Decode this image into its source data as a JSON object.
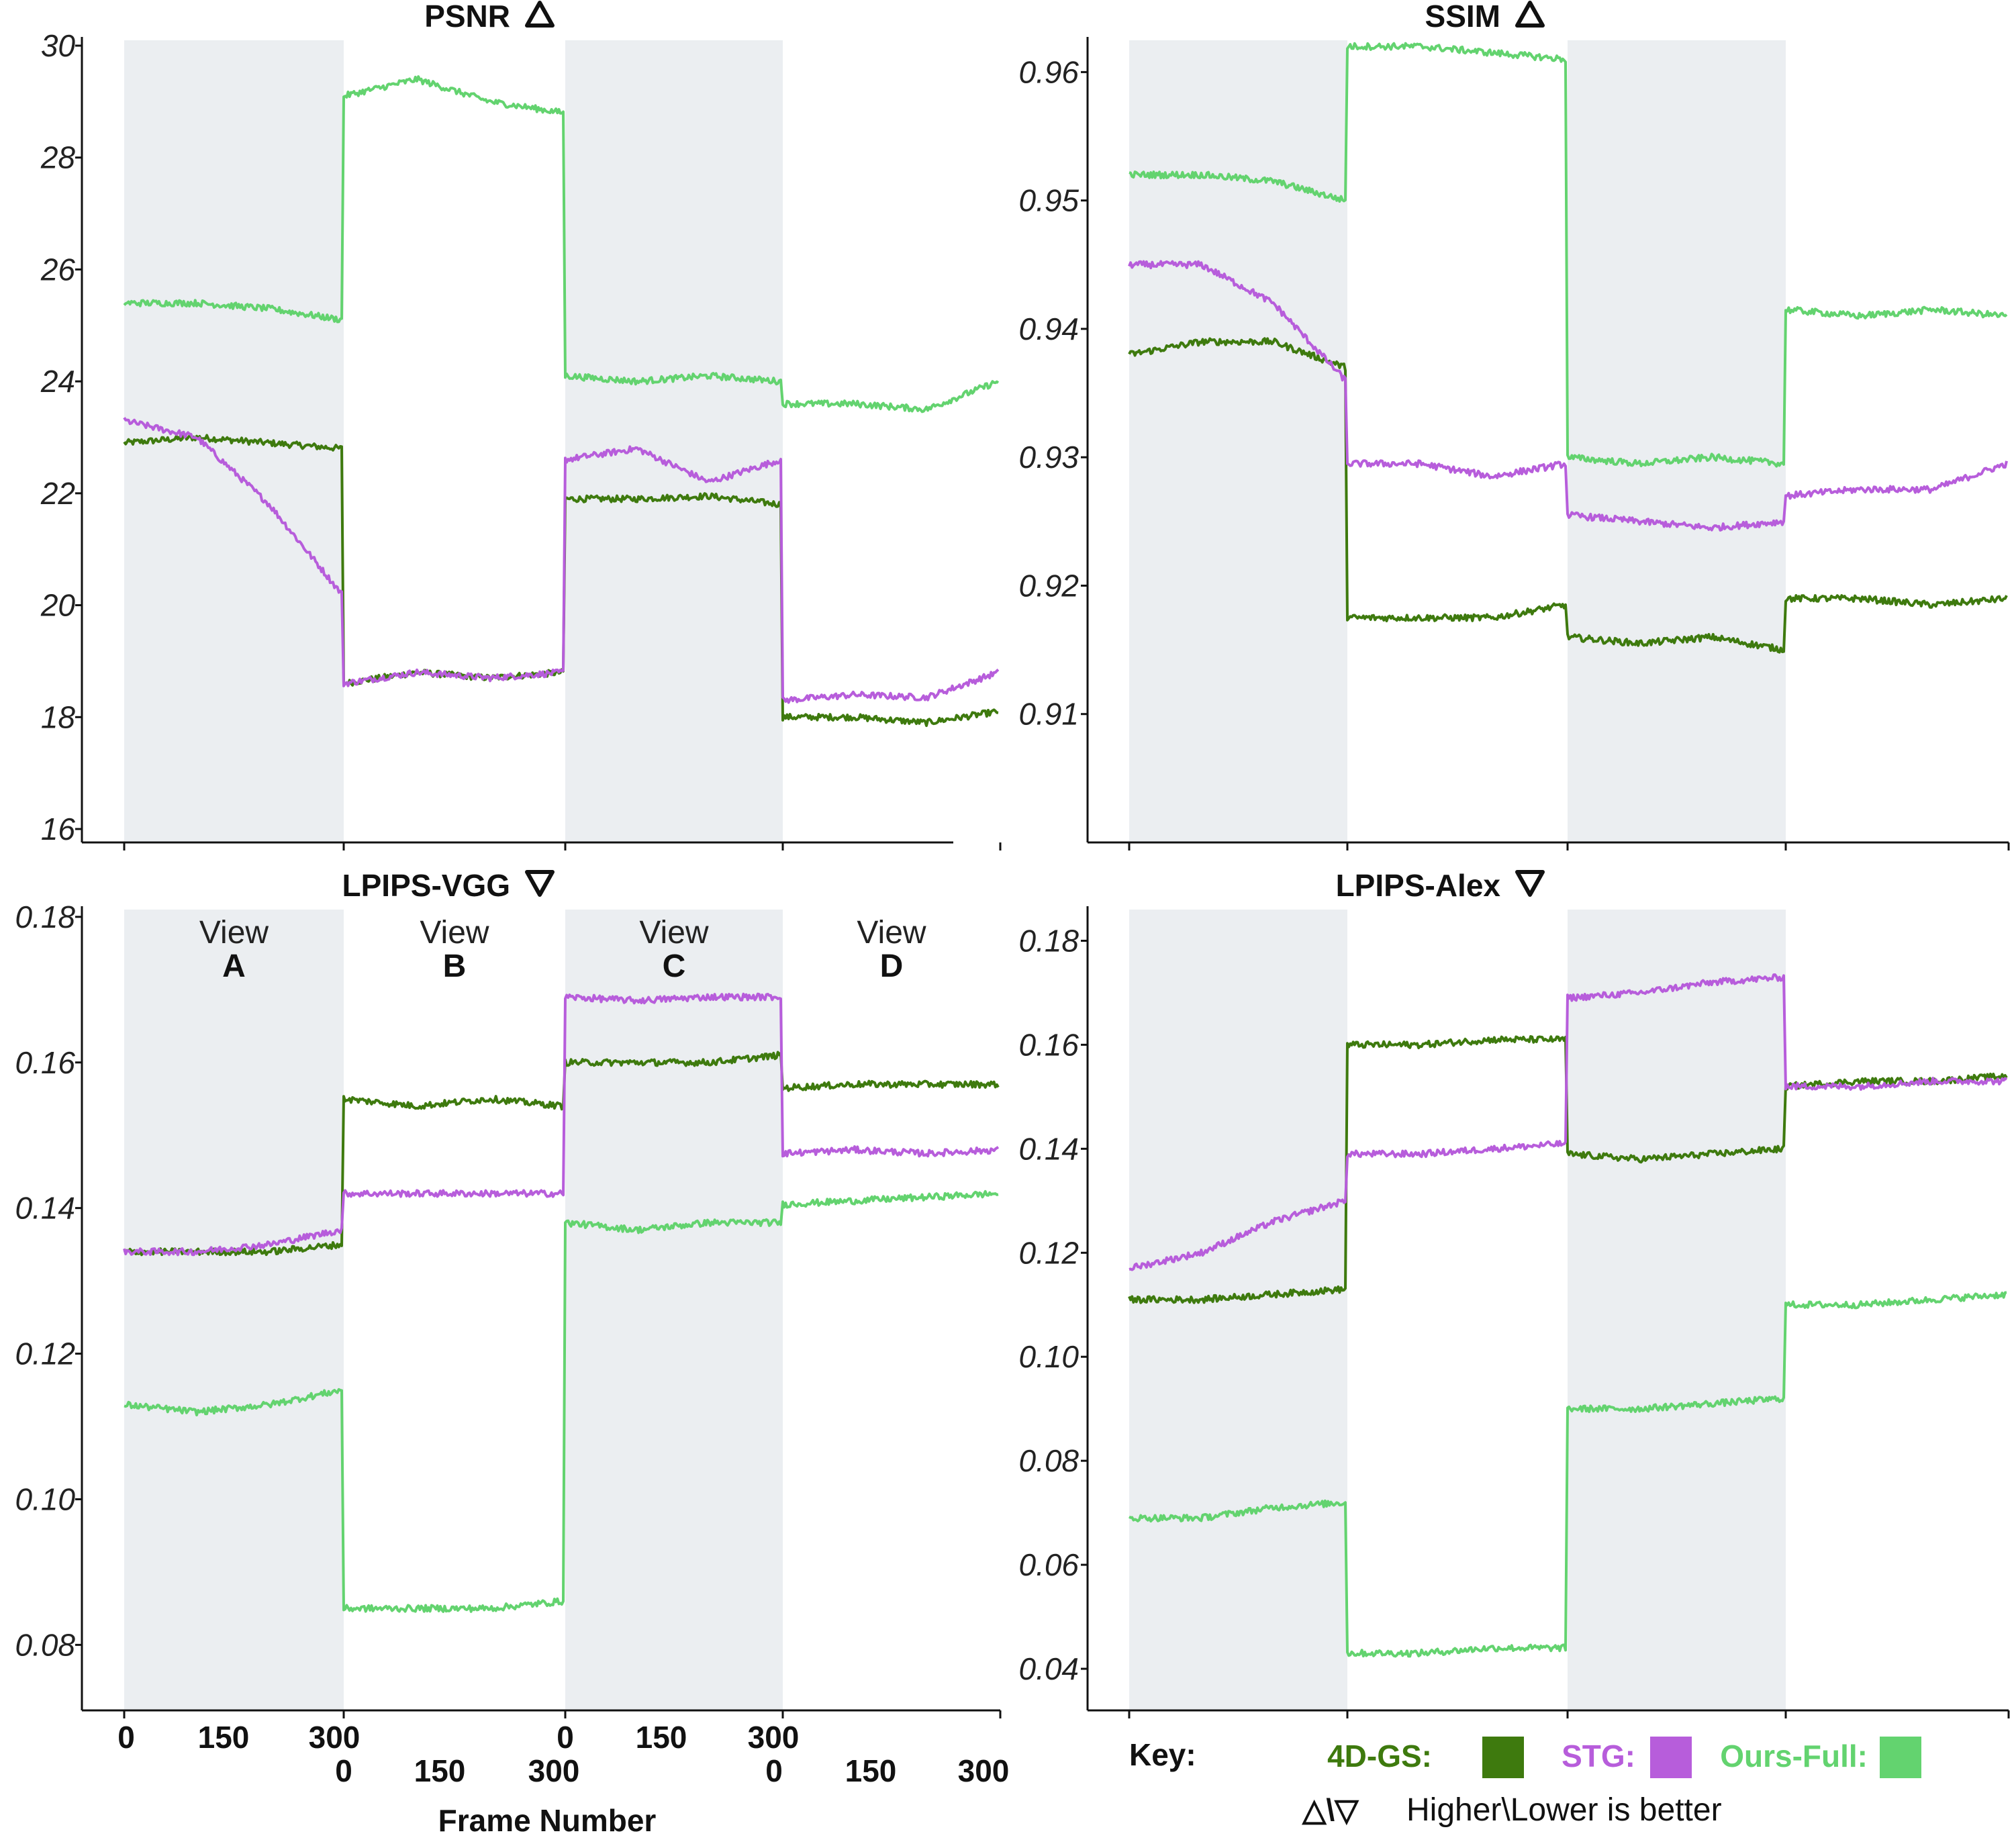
{
  "chart_data": [
    {
      "type": "line",
      "title": "PSNR",
      "direction": "higher",
      "ylim": [
        16,
        30
      ],
      "yticks": [
        "16",
        "18",
        "20",
        "22",
        "24",
        "26",
        "28",
        "30"
      ],
      "x_segments": [
        "View A (frames 0-300)",
        "View B (frames 0-300)",
        "View C (frames 0-300)",
        "View D (frames 0-300)"
      ],
      "series": [
        {
          "name": "4D-GS",
          "segments": [
            [
              22.9,
              23.0,
              22.9,
              22.8
            ],
            [
              18.6,
              18.8,
              18.7,
              18.8
            ],
            [
              21.9,
              21.9,
              21.95,
              21.8
            ],
            [
              18.0,
              18.0,
              17.9,
              18.1
            ]
          ]
        },
        {
          "name": "STG",
          "segments": [
            [
              23.3,
              23.0,
              21.8,
              20.2
            ],
            [
              18.6,
              18.8,
              18.7,
              18.8
            ],
            [
              22.6,
              22.8,
              22.2,
              22.6
            ],
            [
              18.3,
              18.4,
              18.35,
              18.8
            ]
          ]
        },
        {
          "name": "Ours-Full",
          "segments": [
            [
              25.4,
              25.4,
              25.3,
              25.1
            ],
            [
              29.1,
              29.4,
              29.0,
              28.8
            ],
            [
              24.1,
              24.0,
              24.1,
              24.0
            ],
            [
              23.6,
              23.6,
              23.5,
              24.0
            ]
          ]
        }
      ]
    },
    {
      "type": "line",
      "title": "SSIM",
      "direction": "higher",
      "ylim": [
        0.9,
        0.963
      ],
      "yticks": [
        "0.91",
        "0.92",
        "0.93",
        "0.94",
        "0.95",
        "0.96"
      ],
      "x_segments": [
        "View A",
        "View B",
        "View C",
        "View D"
      ],
      "series": [
        {
          "name": "4D-GS",
          "segments": [
            [
              0.938,
              0.939,
              0.939,
              0.937
            ],
            [
              0.9175,
              0.9175,
              0.9175,
              0.9185
            ],
            [
              0.916,
              0.9155,
              0.916,
              0.915
            ],
            [
              0.919,
              0.919,
              0.9185,
              0.919
            ]
          ]
        },
        {
          "name": "STG",
          "segments": [
            [
              0.945,
              0.945,
              0.942,
              0.936
            ],
            [
              0.9295,
              0.9295,
              0.9285,
              0.9295
            ],
            [
              0.9255,
              0.925,
              0.9245,
              0.925
            ],
            [
              0.927,
              0.9275,
              0.9275,
              0.9295
            ]
          ]
        },
        {
          "name": "Ours-Full",
          "segments": [
            [
              0.952,
              0.952,
              0.9515,
              0.95
            ],
            [
              0.962,
              0.962,
              0.9615,
              0.961
            ],
            [
              0.93,
              0.9295,
              0.93,
              0.9295
            ],
            [
              0.9415,
              0.941,
              0.9415,
              0.941
            ]
          ]
        }
      ]
    },
    {
      "type": "line",
      "title": "LPIPS-VGG",
      "direction": "lower",
      "ylim": [
        0.071,
        0.181
      ],
      "yticks": [
        "0.08",
        "0.10",
        "0.12",
        "0.14",
        "0.16",
        "0.18"
      ],
      "x_segments": [
        "View A",
        "View B",
        "View C",
        "View D"
      ],
      "series": [
        {
          "name": "4D-GS",
          "segments": [
            [
              0.134,
              0.134,
              0.134,
              0.135
            ],
            [
              0.155,
              0.154,
              0.155,
              0.154
            ],
            [
              0.16,
              0.16,
              0.16,
              0.161
            ],
            [
              0.1565,
              0.157,
              0.157,
              0.157
            ]
          ]
        },
        {
          "name": "STG",
          "segments": [
            [
              0.134,
              0.134,
              0.135,
              0.137
            ],
            [
              0.142,
              0.142,
              0.142,
              0.142
            ],
            [
              0.169,
              0.1685,
              0.169,
              0.169
            ],
            [
              0.1475,
              0.148,
              0.1475,
              0.148
            ]
          ]
        },
        {
          "name": "Ours-Full",
          "segments": [
            [
              0.113,
              0.112,
              0.113,
              0.115
            ],
            [
              0.085,
              0.085,
              0.085,
              0.086
            ],
            [
              0.138,
              0.137,
              0.138,
              0.138
            ],
            [
              0.1405,
              0.141,
              0.1415,
              0.142
            ]
          ]
        }
      ],
      "annotations": [
        {
          "word": "View",
          "letter": "A"
        },
        {
          "word": "View",
          "letter": "B"
        },
        {
          "word": "View",
          "letter": "C"
        },
        {
          "word": "View",
          "letter": "D"
        }
      ]
    },
    {
      "type": "line",
      "title": "LPIPS-Alex",
      "direction": "lower",
      "ylim": [
        0.032,
        0.186
      ],
      "yticks": [
        "0.04",
        "0.06",
        "0.08",
        "0.10",
        "0.12",
        "0.14",
        "0.16",
        "0.18"
      ],
      "x_segments": [
        "View A",
        "View B",
        "View C",
        "View D"
      ],
      "series": [
        {
          "name": "4D-GS",
          "segments": [
            [
              0.111,
              0.111,
              0.112,
              0.113
            ],
            [
              0.16,
              0.16,
              0.161,
              0.161
            ],
            [
              0.139,
              0.138,
              0.139,
              0.14
            ],
            [
              0.152,
              0.153,
              0.153,
              0.154
            ]
          ]
        },
        {
          "name": "STG",
          "segments": [
            [
              0.117,
              0.12,
              0.126,
              0.13
            ],
            [
              0.139,
              0.139,
              0.14,
              0.141
            ],
            [
              0.169,
              0.17,
              0.172,
              0.173
            ],
            [
              0.152,
              0.152,
              0.153,
              0.153
            ]
          ]
        },
        {
          "name": "Ours-Full",
          "segments": [
            [
              0.069,
              0.069,
              0.071,
              0.072
            ],
            [
              0.043,
              0.043,
              0.044,
              0.044
            ],
            [
              0.09,
              0.09,
              0.091,
              0.092
            ],
            [
              0.11,
              0.11,
              0.111,
              0.112
            ]
          ]
        }
      ]
    }
  ],
  "x_axis": {
    "label": "Frame Number",
    "row1": [
      "0",
      "150",
      "300",
      "0",
      "150",
      "300"
    ],
    "row2": [
      "0",
      "150",
      "300",
      "0",
      "150",
      "300"
    ]
  },
  "legend": {
    "key_label": "Key:",
    "entries": [
      {
        "label": "4D-GS:",
        "color": "#3e7a0e"
      },
      {
        "label": "STG:",
        "color": "#b75ddb"
      },
      {
        "label": "Ours-Full:",
        "color": "#63d36f"
      }
    ],
    "note_symbols": "△\\▽",
    "note_text": "Higher\\Lower is better"
  },
  "colors": {
    "4D-GS": "#3e7a0e",
    "STG": "#b75ddb",
    "Ours-Full": "#63d36f",
    "shade": "#ebeef1",
    "axis": "#111111"
  }
}
